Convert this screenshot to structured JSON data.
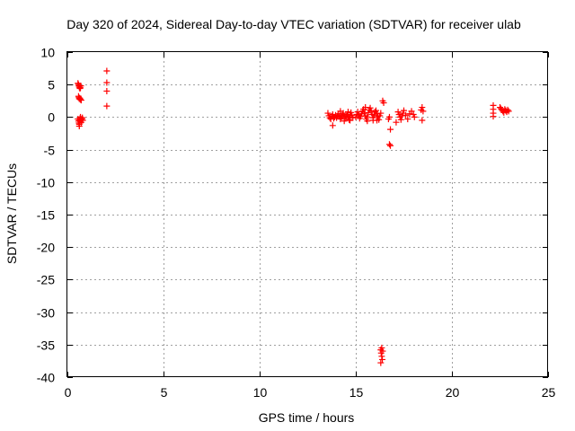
{
  "chart_data": {
    "type": "scatter",
    "title": "Day 320 of 2024, Sidereal Day-to-day VTEC variation (SDTVAR) for receiver ulab",
    "xlabel": "GPS time / hours",
    "ylabel": "SDTVAR / TECUs",
    "xlim": [
      0,
      25
    ],
    "ylim": [
      -40,
      10
    ],
    "xticks": [
      0,
      5,
      10,
      15,
      20,
      25
    ],
    "yticks": [
      10,
      5,
      0,
      -5,
      -10,
      -15,
      -20,
      -25,
      -30,
      -35,
      -40
    ],
    "grid": true,
    "marker": "+",
    "color": "#ff0000",
    "series": [
      {
        "name": "SDTVAR",
        "points": [
          [
            0.55,
            5.2
          ],
          [
            0.58,
            5.0
          ],
          [
            0.6,
            4.8
          ],
          [
            0.62,
            4.6
          ],
          [
            0.65,
            4.4
          ],
          [
            0.68,
            4.5
          ],
          [
            0.7,
            4.8
          ],
          [
            0.58,
            3.2
          ],
          [
            0.6,
            3.0
          ],
          [
            0.62,
            2.8
          ],
          [
            0.65,
            2.9
          ],
          [
            0.68,
            2.7
          ],
          [
            0.72,
            2.6
          ],
          [
            0.55,
            -0.3
          ],
          [
            0.58,
            -0.6
          ],
          [
            0.6,
            -0.9
          ],
          [
            0.62,
            -1.1
          ],
          [
            0.64,
            -0.5
          ],
          [
            0.66,
            -0.2
          ],
          [
            0.68,
            0.0
          ],
          [
            0.7,
            -0.4
          ],
          [
            0.72,
            -0.8
          ],
          [
            0.75,
            -0.3
          ],
          [
            0.78,
            -0.1
          ],
          [
            0.8,
            -0.5
          ],
          [
            0.62,
            -1.4
          ],
          [
            2.05,
            7.1
          ],
          [
            2.05,
            5.3
          ],
          [
            2.05,
            4.0
          ],
          [
            2.05,
            1.7
          ],
          [
            13.55,
            0.6
          ],
          [
            13.6,
            0.2
          ],
          [
            13.65,
            -0.1
          ],
          [
            13.7,
            -0.3
          ],
          [
            13.75,
            0.1
          ],
          [
            13.8,
            0.4
          ],
          [
            13.85,
            -0.2
          ],
          [
            13.9,
            0.0
          ],
          [
            13.95,
            0.3
          ],
          [
            14.0,
            -0.1
          ],
          [
            14.05,
            0.2
          ],
          [
            14.1,
            0.5
          ],
          [
            14.15,
            0.1
          ],
          [
            14.2,
            -0.3
          ],
          [
            14.25,
            0.0
          ],
          [
            14.3,
            0.3
          ],
          [
            14.35,
            0.6
          ],
          [
            14.4,
            0.2
          ],
          [
            14.45,
            -0.2
          ],
          [
            14.5,
            0.1
          ],
          [
            14.55,
            0.4
          ],
          [
            14.6,
            0.0
          ],
          [
            14.65,
            -0.4
          ],
          [
            14.7,
            0.2
          ],
          [
            14.75,
            0.7
          ],
          [
            14.8,
            0.3
          ],
          [
            14.85,
            -0.1
          ],
          [
            13.8,
            -1.3
          ],
          [
            14.2,
            0.9
          ],
          [
            14.4,
            -0.6
          ],
          [
            14.6,
            0.8
          ],
          [
            14.7,
            -0.5
          ],
          [
            15.0,
            0.0
          ],
          [
            15.05,
            0.4
          ],
          [
            15.1,
            0.8
          ],
          [
            15.15,
            0.3
          ],
          [
            15.2,
            -0.2
          ],
          [
            15.25,
            0.1
          ],
          [
            15.3,
            0.5
          ],
          [
            15.35,
            0.9
          ],
          [
            15.4,
            1.2
          ],
          [
            15.45,
            0.6
          ],
          [
            15.5,
            0.2
          ],
          [
            15.55,
            -0.3
          ],
          [
            15.6,
            0.0
          ],
          [
            15.65,
            0.7
          ],
          [
            15.7,
            1.1
          ],
          [
            15.75,
            1.4
          ],
          [
            15.8,
            0.9
          ],
          [
            15.85,
            0.4
          ],
          [
            15.9,
            -0.1
          ],
          [
            15.95,
            0.3
          ],
          [
            16.0,
            0.8
          ],
          [
            16.05,
            1.0
          ],
          [
            16.1,
            0.5
          ],
          [
            16.15,
            0.1
          ],
          [
            16.2,
            -0.4
          ],
          [
            16.25,
            0.2
          ],
          [
            16.3,
            0.6
          ],
          [
            15.6,
            -0.6
          ],
          [
            15.9,
            -0.5
          ],
          [
            16.1,
            -0.5
          ],
          [
            15.5,
            1.5
          ],
          [
            16.4,
            2.5
          ],
          [
            16.45,
            2.2
          ],
          [
            16.7,
            -0.3
          ],
          [
            16.75,
            0.0
          ],
          [
            16.8,
            -1.9
          ],
          [
            16.75,
            -4.2
          ],
          [
            16.8,
            -4.4
          ],
          [
            17.2,
            0.8
          ],
          [
            17.25,
            0.4
          ],
          [
            17.3,
            0.0
          ],
          [
            17.35,
            -0.4
          ],
          [
            17.4,
            0.2
          ],
          [
            17.45,
            0.6
          ],
          [
            17.5,
            1.0
          ],
          [
            17.6,
            0.3
          ],
          [
            17.7,
            -0.3
          ],
          [
            17.8,
            0.5
          ],
          [
            17.9,
            0.9
          ],
          [
            18.0,
            0.4
          ],
          [
            18.05,
            0.0
          ],
          [
            17.1,
            -0.8
          ],
          [
            18.4,
            1.1
          ],
          [
            18.45,
            1.5
          ],
          [
            18.5,
            0.9
          ],
          [
            18.45,
            -0.5
          ],
          [
            16.3,
            -35.8
          ],
          [
            16.32,
            -36.3
          ],
          [
            16.35,
            -36.8
          ],
          [
            16.38,
            -37.3
          ],
          [
            16.3,
            -37.8
          ],
          [
            16.4,
            -36.0
          ],
          [
            16.35,
            -35.5
          ],
          [
            22.15,
            1.8
          ],
          [
            22.15,
            1.2
          ],
          [
            22.15,
            0.6
          ],
          [
            22.15,
            0.1
          ],
          [
            22.5,
            1.5
          ],
          [
            22.55,
            1.3
          ],
          [
            22.6,
            1.1
          ],
          [
            22.65,
            0.9
          ],
          [
            22.7,
            0.7
          ],
          [
            22.75,
            1.2
          ],
          [
            22.8,
            1.0
          ],
          [
            22.85,
            0.8
          ],
          [
            22.9,
            1.1
          ],
          [
            22.95,
            0.9
          ]
        ]
      }
    ]
  }
}
